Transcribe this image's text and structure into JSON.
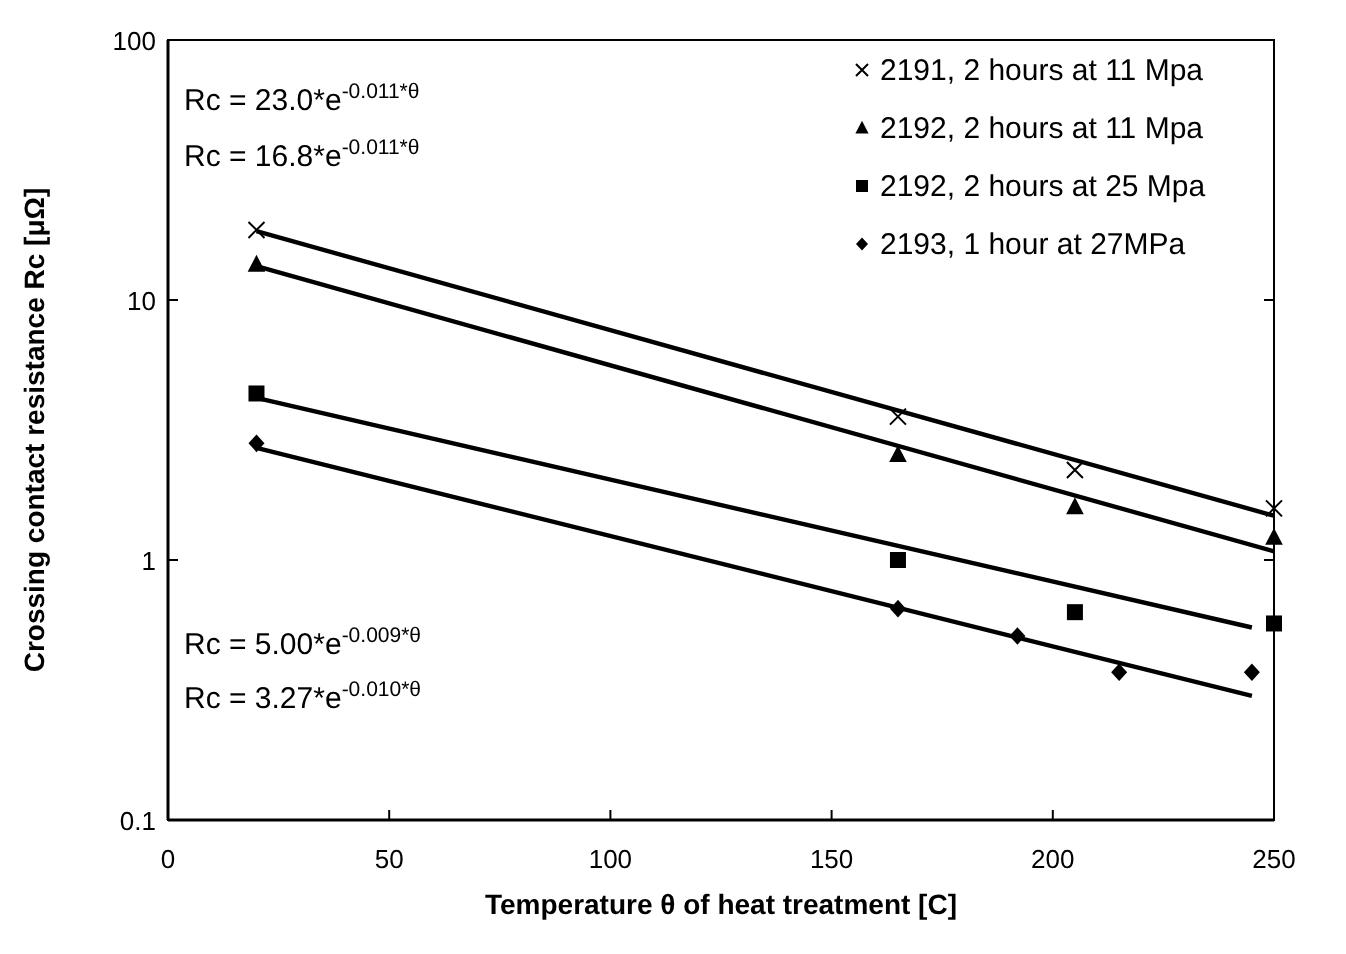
{
  "chart_data": {
    "type": "scatter",
    "xlabel": "Temperature θ of heat treatment [C]",
    "ylabel": "Crossing contact resistance Rc [μΩ]",
    "xlim": [
      0,
      250
    ],
    "xticks": [
      0,
      50,
      100,
      150,
      200,
      250
    ],
    "ylim": [
      0.1,
      100
    ],
    "yticks": [
      0.1,
      1,
      10,
      100
    ],
    "log": "y",
    "grid": false,
    "legend": "top right",
    "series": [
      {
        "name": "2191, 2 hours at 11 Mpa",
        "color": "#000000",
        "marker": "cross",
        "x": [
          20,
          165,
          205,
          250
        ],
        "values": [
          18.6,
          3.56,
          2.22,
          1.58
        ]
      },
      {
        "name": "2192, 2 hours at 11 Mpa",
        "color": "#000000",
        "marker": "triangle",
        "x": [
          20,
          165,
          205,
          250
        ],
        "values": [
          13.7,
          2.54,
          1.6,
          1.22
        ]
      },
      {
        "name": "2192, 2 hours at 25 Mpa",
        "color": "#000000",
        "marker": "square",
        "x": [
          20,
          165,
          205,
          250
        ],
        "values": [
          4.37,
          1.0,
          0.63,
          0.57
        ]
      },
      {
        "name": "2193, 1 hour at 27MPa",
        "color": "#000000",
        "marker": "diamond",
        "x": [
          20,
          165,
          192,
          215,
          245
        ],
        "values": [
          2.81,
          0.65,
          0.51,
          0.37,
          0.37
        ]
      },
      {
        "type": "line",
        "color": "#000000",
        "marker": "none",
        "x": [
          20,
          250
        ],
        "values": [
          18.4,
          1.48
        ]
      },
      {
        "type": "line",
        "color": "#000000",
        "marker": "none",
        "x": [
          20,
          250
        ],
        "values": [
          13.5,
          1.08
        ]
      },
      {
        "type": "line",
        "color": "#000000",
        "marker": "none",
        "x": [
          20,
          245
        ],
        "values": [
          4.2,
          0.55
        ]
      },
      {
        "type": "line",
        "color": "#000000",
        "marker": "none",
        "x": [
          20,
          245
        ],
        "values": [
          2.7,
          0.3
        ]
      }
    ],
    "annotations": [
      "Rc = 23.0*e$^{-0.011*θ}$",
      "Rc = 16.8*e$^{-0.011*θ}$",
      "Rc = 5.00*e$^{-0.009*θ}$",
      "Rc = 3.27*e$^{-0.010*θ}$"
    ]
  }
}
